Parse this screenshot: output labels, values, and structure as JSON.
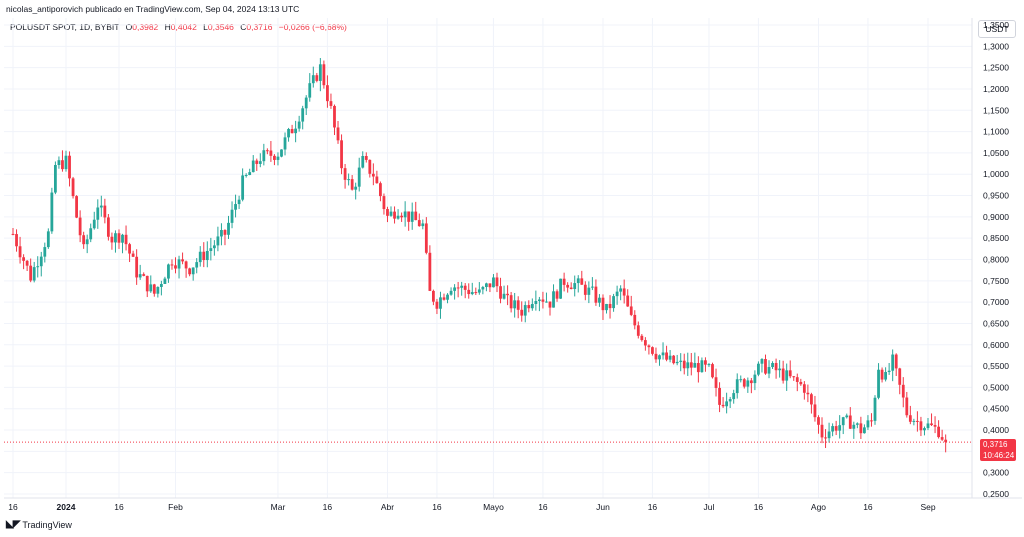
{
  "header": {
    "publisher_line": "nicolas_antiporovich publicado en TradingView.com, Sep 04, 2024 13:13 UTC"
  },
  "legend": {
    "symbol": "POLUSDT SPOT, 1D, BYBIT",
    "open_label": "O",
    "open_value": "0,3982",
    "high_label": "H",
    "high_value": "0,4042",
    "low_label": "L",
    "low_value": "0,3546",
    "close_label": "C",
    "close_value": "0,3716",
    "change": "−0,0266 (−6,68%)"
  },
  "toolbar": {
    "currency_label": "USDT"
  },
  "price_tag": {
    "price": "0,3716",
    "countdown": "10:46:24",
    "color": "#f23645"
  },
  "footer": {
    "brand": "TradingView",
    "logo": "tradingview-logo-icon"
  },
  "colors": {
    "up": "#26a69a",
    "down": "#f23645",
    "grid": "#f0f3fa"
  },
  "chart_data": {
    "type": "candlestick",
    "title": "POLUSDT SPOT, 1D, BYBIT",
    "ylim": [
      0.25,
      1.35
    ],
    "y_ticks": [
      "1,3500",
      "1,3000",
      "1,2500",
      "1,2000",
      "1,1500",
      "1,1000",
      "1,0500",
      "1,0000",
      "0,9500",
      "0,9000",
      "0,8500",
      "0,8000",
      "0,7500",
      "0,7000",
      "0,6500",
      "0,6000",
      "0,5500",
      "0,5000",
      "0,4500",
      "0,4000",
      "0,3500",
      "0,3000",
      "0,2500"
    ],
    "y_tick_values": [
      1.35,
      1.3,
      1.25,
      1.2,
      1.15,
      1.1,
      1.05,
      1.0,
      0.95,
      0.9,
      0.85,
      0.8,
      0.75,
      0.7,
      0.65,
      0.6,
      0.55,
      0.5,
      0.45,
      0.4,
      0.35,
      0.3,
      0.25
    ],
    "x_ticks": [
      "16",
      "2024",
      "16",
      "Feb",
      "Mar",
      "16",
      "Abr",
      "16",
      "Mayo",
      "16",
      "Jun",
      "16",
      "Jul",
      "16",
      "Ago",
      "16",
      "Sep"
    ],
    "x_tick_days": [
      0,
      15,
      30,
      46,
      75,
      89,
      106,
      120,
      136,
      150,
      167,
      181,
      197,
      211,
      228,
      242,
      259
    ],
    "last_price": 0.3716,
    "series": [
      {
        "points": [
          {
            "day": 0,
            "close": 0.86
          },
          {
            "day": 5,
            "close": 0.76
          },
          {
            "day": 10,
            "close": 0.86
          },
          {
            "day": 12,
            "close": 1.02
          },
          {
            "day": 15,
            "close": 1.03
          },
          {
            "day": 18,
            "close": 0.9
          },
          {
            "day": 20,
            "close": 0.82
          },
          {
            "day": 24,
            "close": 0.93
          },
          {
            "day": 28,
            "close": 0.85
          },
          {
            "day": 31,
            "close": 0.86
          },
          {
            "day": 35,
            "close": 0.77
          },
          {
            "day": 40,
            "close": 0.72
          },
          {
            "day": 45,
            "close": 0.8
          },
          {
            "day": 50,
            "close": 0.78
          },
          {
            "day": 55,
            "close": 0.82
          },
          {
            "day": 60,
            "close": 0.86
          },
          {
            "day": 65,
            "close": 0.98
          },
          {
            "day": 70,
            "close": 1.04
          },
          {
            "day": 75,
            "close": 1.05
          },
          {
            "day": 80,
            "close": 1.12
          },
          {
            "day": 84,
            "close": 1.2
          },
          {
            "day": 87,
            "close": 1.25
          },
          {
            "day": 90,
            "close": 1.15
          },
          {
            "day": 93,
            "close": 1.02
          },
          {
            "day": 96,
            "close": 0.96
          },
          {
            "day": 99,
            "close": 1.03
          },
          {
            "day": 102,
            "close": 1.0
          },
          {
            "day": 106,
            "close": 0.9
          },
          {
            "day": 109,
            "close": 0.92
          },
          {
            "day": 112,
            "close": 0.9
          },
          {
            "day": 116,
            "close": 0.88
          },
          {
            "day": 118,
            "close": 0.72
          },
          {
            "day": 120,
            "close": 0.7
          },
          {
            "day": 124,
            "close": 0.74
          },
          {
            "day": 128,
            "close": 0.73
          },
          {
            "day": 132,
            "close": 0.72
          },
          {
            "day": 136,
            "close": 0.75
          },
          {
            "day": 140,
            "close": 0.7
          },
          {
            "day": 144,
            "close": 0.68
          },
          {
            "day": 148,
            "close": 0.72
          },
          {
            "day": 152,
            "close": 0.7
          },
          {
            "day": 156,
            "close": 0.75
          },
          {
            "day": 160,
            "close": 0.74
          },
          {
            "day": 164,
            "close": 0.72
          },
          {
            "day": 168,
            "close": 0.68
          },
          {
            "day": 172,
            "close": 0.73
          },
          {
            "day": 175,
            "close": 0.66
          },
          {
            "day": 178,
            "close": 0.62
          },
          {
            "day": 182,
            "close": 0.58
          },
          {
            "day": 186,
            "close": 0.56
          },
          {
            "day": 190,
            "close": 0.55
          },
          {
            "day": 194,
            "close": 0.55
          },
          {
            "day": 197,
            "close": 0.54
          },
          {
            "day": 200,
            "close": 0.46
          },
          {
            "day": 204,
            "close": 0.5
          },
          {
            "day": 208,
            "close": 0.52
          },
          {
            "day": 212,
            "close": 0.55
          },
          {
            "day": 216,
            "close": 0.54
          },
          {
            "day": 220,
            "close": 0.52
          },
          {
            "day": 224,
            "close": 0.5
          },
          {
            "day": 227,
            "close": 0.43
          },
          {
            "day": 229,
            "close": 0.39
          },
          {
            "day": 233,
            "close": 0.41
          },
          {
            "day": 237,
            "close": 0.42
          },
          {
            "day": 240,
            "close": 0.4
          },
          {
            "day": 243,
            "close": 0.42
          },
          {
            "day": 245,
            "close": 0.55
          },
          {
            "day": 247,
            "close": 0.52
          },
          {
            "day": 249,
            "close": 0.56
          },
          {
            "day": 251,
            "close": 0.5
          },
          {
            "day": 253,
            "close": 0.44
          },
          {
            "day": 256,
            "close": 0.42
          },
          {
            "day": 259,
            "close": 0.41
          },
          {
            "day": 262,
            "close": 0.4
          },
          {
            "day": 264,
            "close": 0.3716
          }
        ]
      }
    ]
  }
}
